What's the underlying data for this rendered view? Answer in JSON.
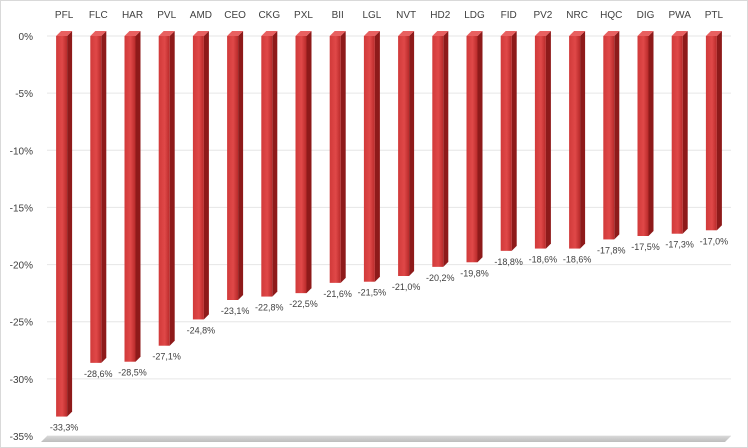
{
  "chart_data": {
    "type": "bar",
    "title": "",
    "xlabel": "",
    "ylabel": "",
    "categories": [
      "PFL",
      "FLC",
      "HAR",
      "PVL",
      "AMD",
      "CEO",
      "CKG",
      "PXL",
      "BII",
      "LGL",
      "NVT",
      "HD2",
      "LDG",
      "FID",
      "PV2",
      "NRC",
      "HQC",
      "DIG",
      "PWA",
      "PTL"
    ],
    "values": [
      -33.3,
      -28.6,
      -28.5,
      -27.1,
      -24.8,
      -23.1,
      -22.8,
      -22.5,
      -21.6,
      -21.5,
      -21.0,
      -20.2,
      -19.8,
      -18.8,
      -18.6,
      -18.6,
      -17.8,
      -17.5,
      -17.3,
      -17.0
    ],
    "value_labels": [
      "-33,3%",
      "-28,6%",
      "-28,5%",
      "-27,1%",
      "-24,8%",
      "-23,1%",
      "-22,8%",
      "-22,5%",
      "-21,6%",
      "-21,5%",
      "-21,0%",
      "-20,2%",
      "-19,8%",
      "-18,8%",
      "-18,6%",
      "-18,6%",
      "-17,8%",
      "-17,5%",
      "-17,3%",
      "-17,0%"
    ],
    "ylim": [
      -35,
      0
    ],
    "yticks": [
      0,
      -5,
      -10,
      -15,
      -20,
      -25,
      -30,
      -35
    ],
    "ytick_labels": [
      "0%",
      "-5%",
      "-10%",
      "-15%",
      "-20%",
      "-25%",
      "-30%",
      "-35%"
    ],
    "grid": true,
    "legend": "none",
    "category_axis_position": "top",
    "colors": {
      "bar_front": "#d13a3a",
      "bar_side": "#8e1a1a",
      "bar_top": "#e86060",
      "grid": "#e6e6e6",
      "floor": "#c8c8c8"
    }
  }
}
